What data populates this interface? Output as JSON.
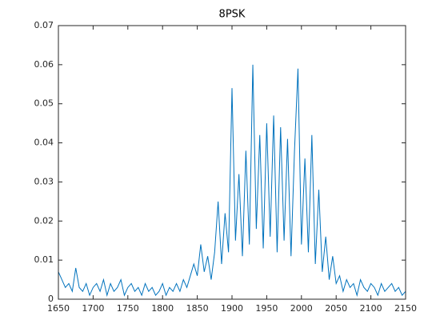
{
  "chart_data": {
    "type": "line",
    "title": "8PSK",
    "x": [
      1650,
      1655,
      1660,
      1665,
      1670,
      1675,
      1680,
      1685,
      1690,
      1695,
      1700,
      1705,
      1710,
      1715,
      1720,
      1725,
      1730,
      1735,
      1740,
      1745,
      1750,
      1755,
      1760,
      1765,
      1770,
      1775,
      1780,
      1785,
      1790,
      1795,
      1800,
      1805,
      1810,
      1815,
      1820,
      1825,
      1830,
      1835,
      1840,
      1845,
      1850,
      1855,
      1860,
      1865,
      1870,
      1875,
      1880,
      1885,
      1890,
      1895,
      1900,
      1905,
      1910,
      1915,
      1920,
      1925,
      1930,
      1935,
      1940,
      1945,
      1950,
      1955,
      1960,
      1965,
      1970,
      1975,
      1980,
      1985,
      1990,
      1995,
      2000,
      2005,
      2010,
      2015,
      2020,
      2025,
      2030,
      2035,
      2040,
      2045,
      2050,
      2055,
      2060,
      2065,
      2070,
      2075,
      2080,
      2085,
      2090,
      2095,
      2100,
      2105,
      2110,
      2115,
      2120,
      2125,
      2130,
      2135,
      2140,
      2145,
      2150
    ],
    "series": [
      {
        "color": "#0072bd",
        "values": [
          0.007,
          0.005,
          0.003,
          0.004,
          0.002,
          0.008,
          0.003,
          0.002,
          0.004,
          0.001,
          0.003,
          0.004,
          0.002,
          0.005,
          0.001,
          0.004,
          0.002,
          0.003,
          0.005,
          0.001,
          0.003,
          0.004,
          0.002,
          0.003,
          0.001,
          0.004,
          0.002,
          0.003,
          0.001,
          0.002,
          0.004,
          0.001,
          0.003,
          0.002,
          0.004,
          0.002,
          0.005,
          0.003,
          0.006,
          0.009,
          0.006,
          0.014,
          0.007,
          0.011,
          0.005,
          0.012,
          0.025,
          0.009,
          0.022,
          0.012,
          0.054,
          0.015,
          0.032,
          0.011,
          0.038,
          0.014,
          0.06,
          0.018,
          0.042,
          0.013,
          0.045,
          0.016,
          0.047,
          0.012,
          0.044,
          0.015,
          0.041,
          0.011,
          0.038,
          0.059,
          0.014,
          0.036,
          0.012,
          0.042,
          0.009,
          0.028,
          0.007,
          0.016,
          0.005,
          0.011,
          0.004,
          0.006,
          0.002,
          0.005,
          0.003,
          0.004,
          0.001,
          0.005,
          0.003,
          0.002,
          0.004,
          0.003,
          0.001,
          0.004,
          0.002,
          0.003,
          0.004,
          0.002,
          0.003,
          0.001,
          0.002
        ]
      }
    ],
    "xlim": [
      1650,
      2150
    ],
    "xticks": [
      1650,
      1700,
      1750,
      1800,
      1850,
      1900,
      1950,
      2000,
      2050,
      2100,
      2150
    ],
    "ylim": [
      0,
      0.07
    ],
    "yticks": [
      0,
      0.01,
      0.02,
      0.03,
      0.04,
      0.05,
      0.06,
      0.07
    ]
  }
}
